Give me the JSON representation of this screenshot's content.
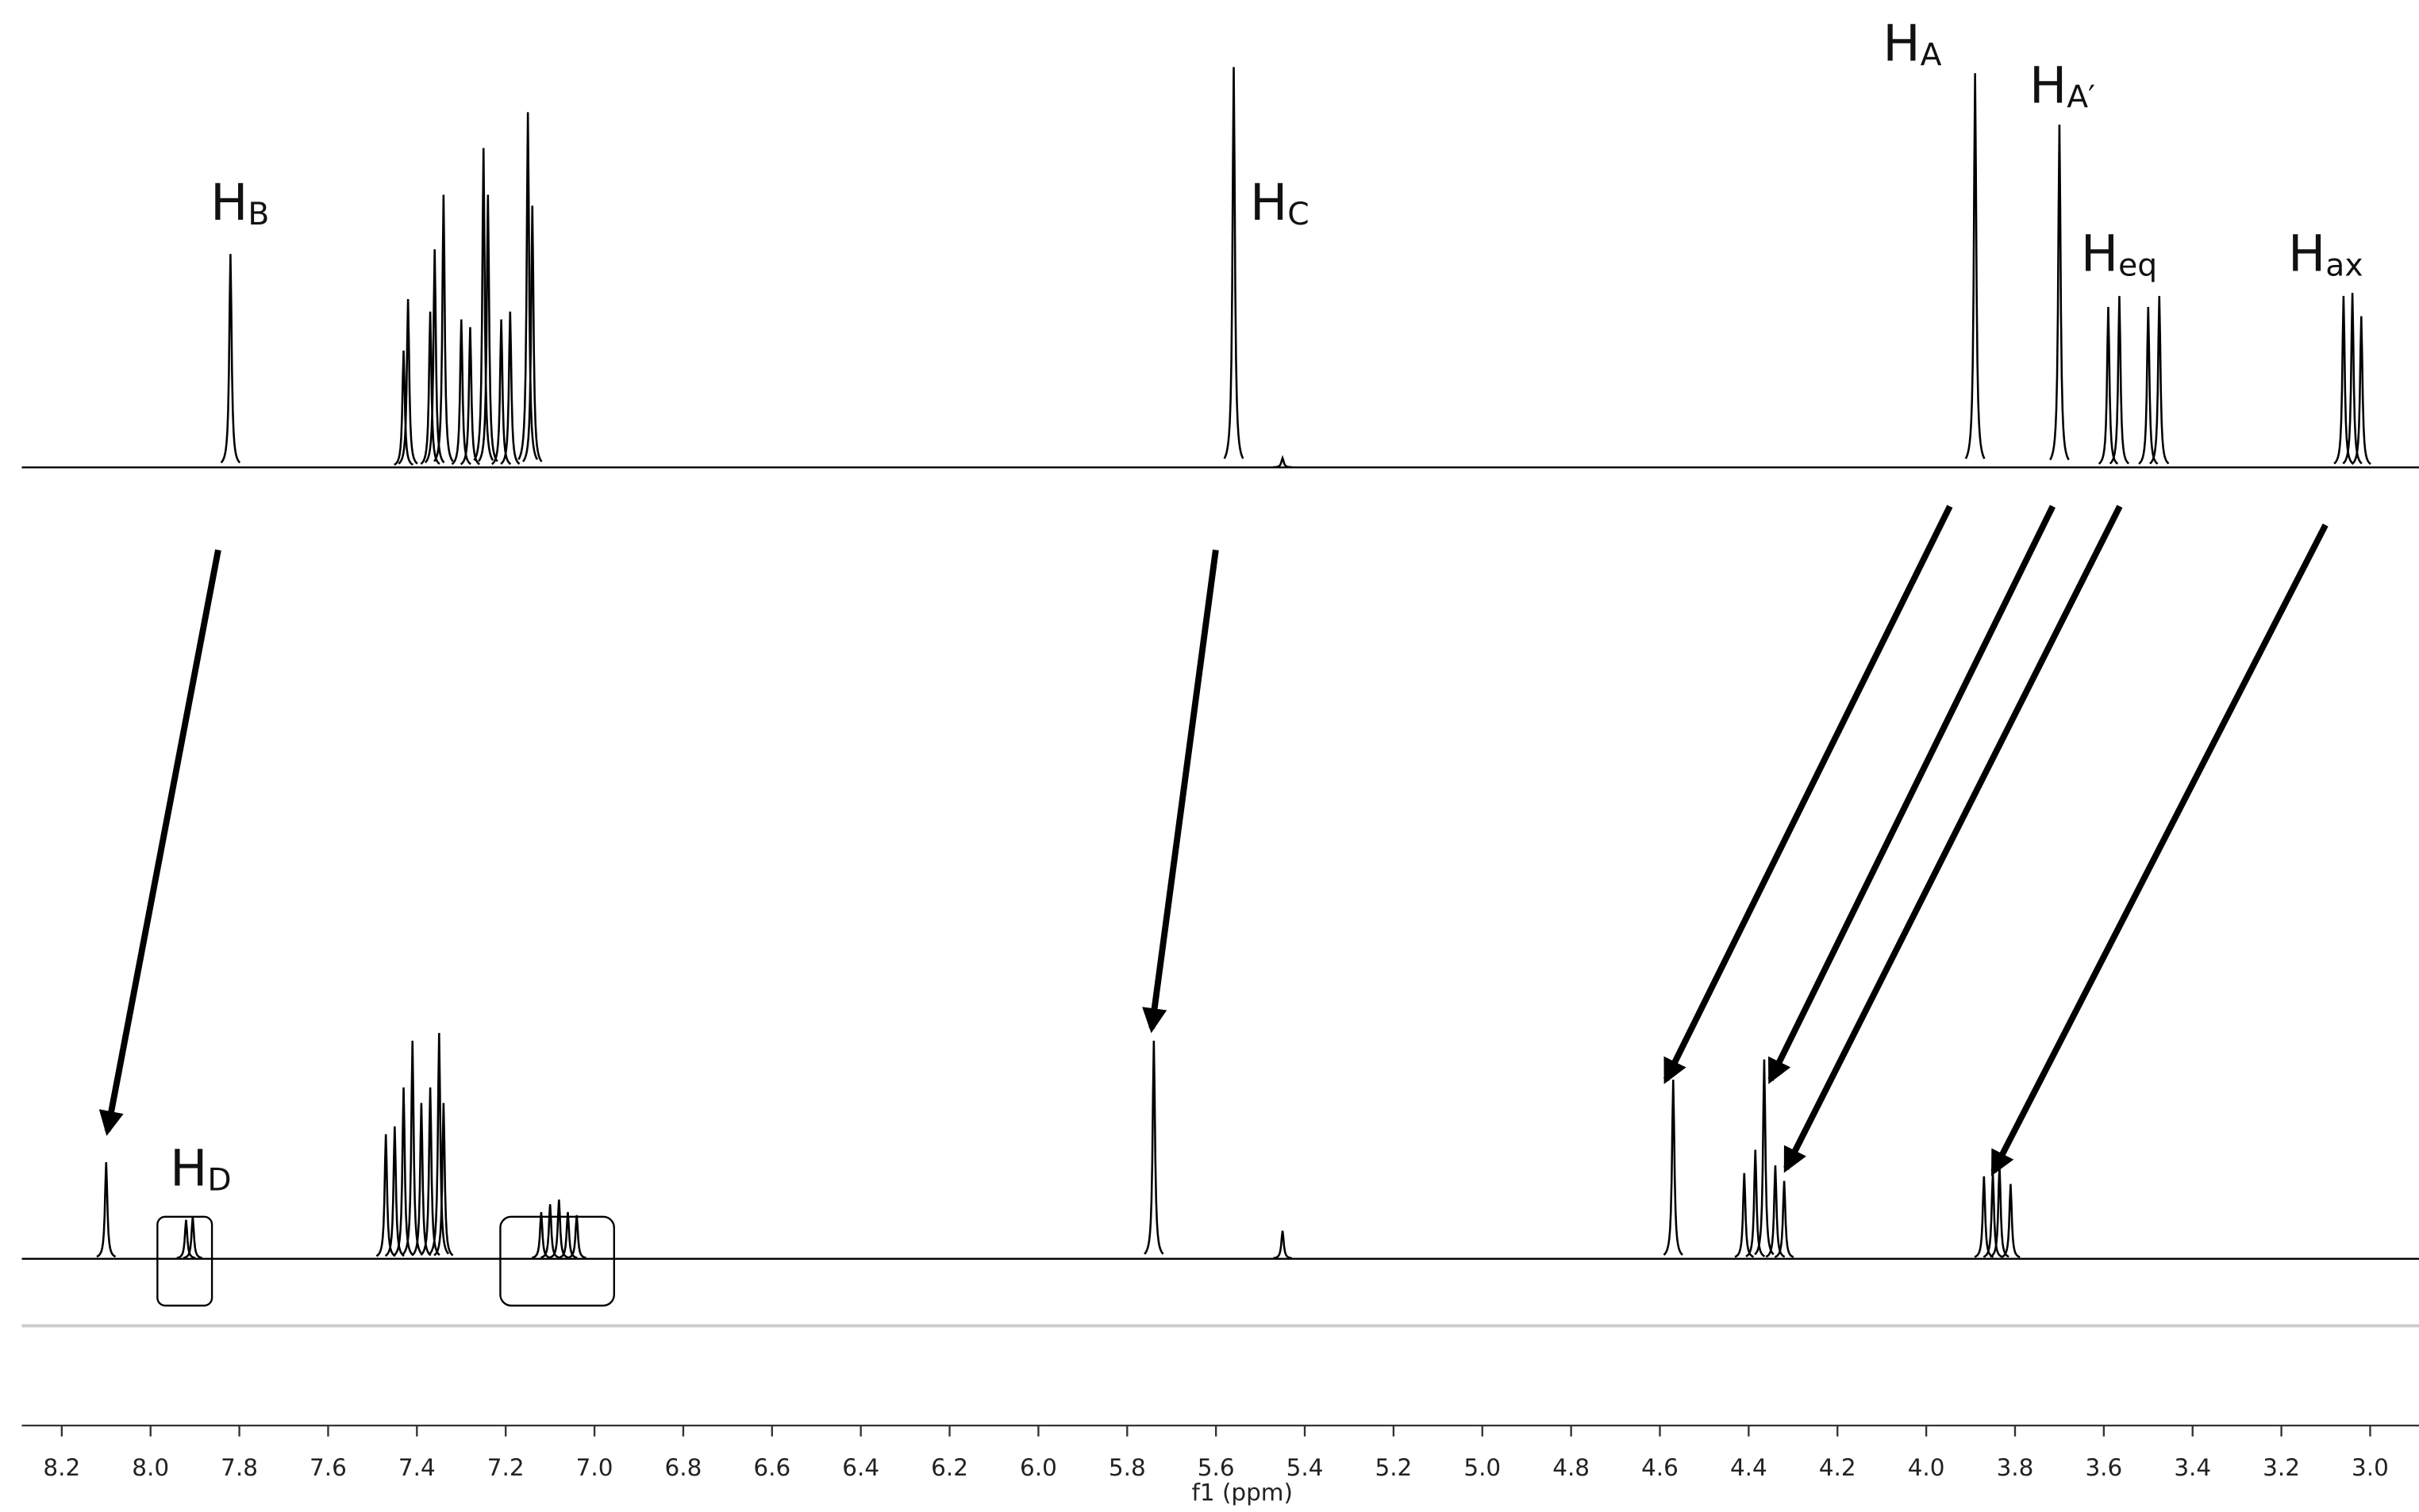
{
  "chart_data": {
    "type": "nmr",
    "xlabel": "f1 (ppm)",
    "xlim": [
      8.29,
      2.89
    ],
    "xticks": [
      8.2,
      {
        "value": 8.0,
        "label": "8.0"
      },
      7.8,
      7.6,
      7.4,
      7.2,
      {
        "value": 7.0,
        "label": "7.0"
      },
      6.8,
      6.6,
      6.4,
      6.2,
      {
        "value": 6.0,
        "label": "6.0"
      },
      5.8,
      5.6,
      5.4,
      5.2,
      {
        "value": 5.0,
        "label": "5.0"
      },
      4.8,
      4.6,
      4.4,
      4.2,
      {
        "value": 4.0,
        "label": "4.0"
      },
      3.8,
      3.6,
      3.4,
      3.2,
      {
        "value": 3.0,
        "label": "3.0"
      }
    ],
    "series": [
      {
        "color": "#000000",
        "x": [
          7.82,
          7.43,
          7.42,
          7.37,
          7.36,
          7.34,
          7.3,
          7.28,
          7.25,
          7.24,
          7.21,
          7.19,
          7.15,
          7.14,
          5.56,
          5.45,
          3.89,
          3.7,
          3.59,
          3.565,
          3.5,
          3.475,
          3.06,
          3.04,
          3.02
        ],
        "values": [
          137,
          75,
          108,
          100,
          140,
          175,
          95,
          90,
          205,
          175,
          95,
          100,
          228,
          168,
          257,
          6,
          253,
          220,
          103,
          110,
          103,
          110,
          110,
          112,
          97
        ]
      },
      {
        "color": "#000000",
        "x": [
          8.1,
          7.92,
          7.905,
          7.47,
          7.45,
          7.43,
          7.41,
          7.39,
          7.37,
          7.35,
          7.34,
          7.12,
          7.1,
          7.08,
          7.06,
          7.04,
          5.74,
          5.45,
          4.57,
          4.41,
          4.385,
          4.365,
          4.34,
          4.32,
          3.87,
          3.85,
          3.835,
          3.81
        ],
        "values": [
          62,
          25,
          27,
          80,
          85,
          110,
          140,
          100,
          110,
          145,
          100,
          30,
          35,
          38,
          30,
          28,
          140,
          18,
          115,
          55,
          70,
          128,
          60,
          50,
          53,
          55,
          60,
          48
        ]
      }
    ],
    "annotations": [
      {
        "text": "H",
        "sub": "B"
      },
      {
        "text": "H",
        "sub": "C"
      },
      {
        "text": "H",
        "sub": "A"
      },
      {
        "text": "H",
        "sub": "A′"
      },
      {
        "text": "H",
        "sub": "eq"
      },
      {
        "text": "H",
        "sub": "ax"
      },
      {
        "text": "H",
        "sub": "D"
      }
    ]
  }
}
